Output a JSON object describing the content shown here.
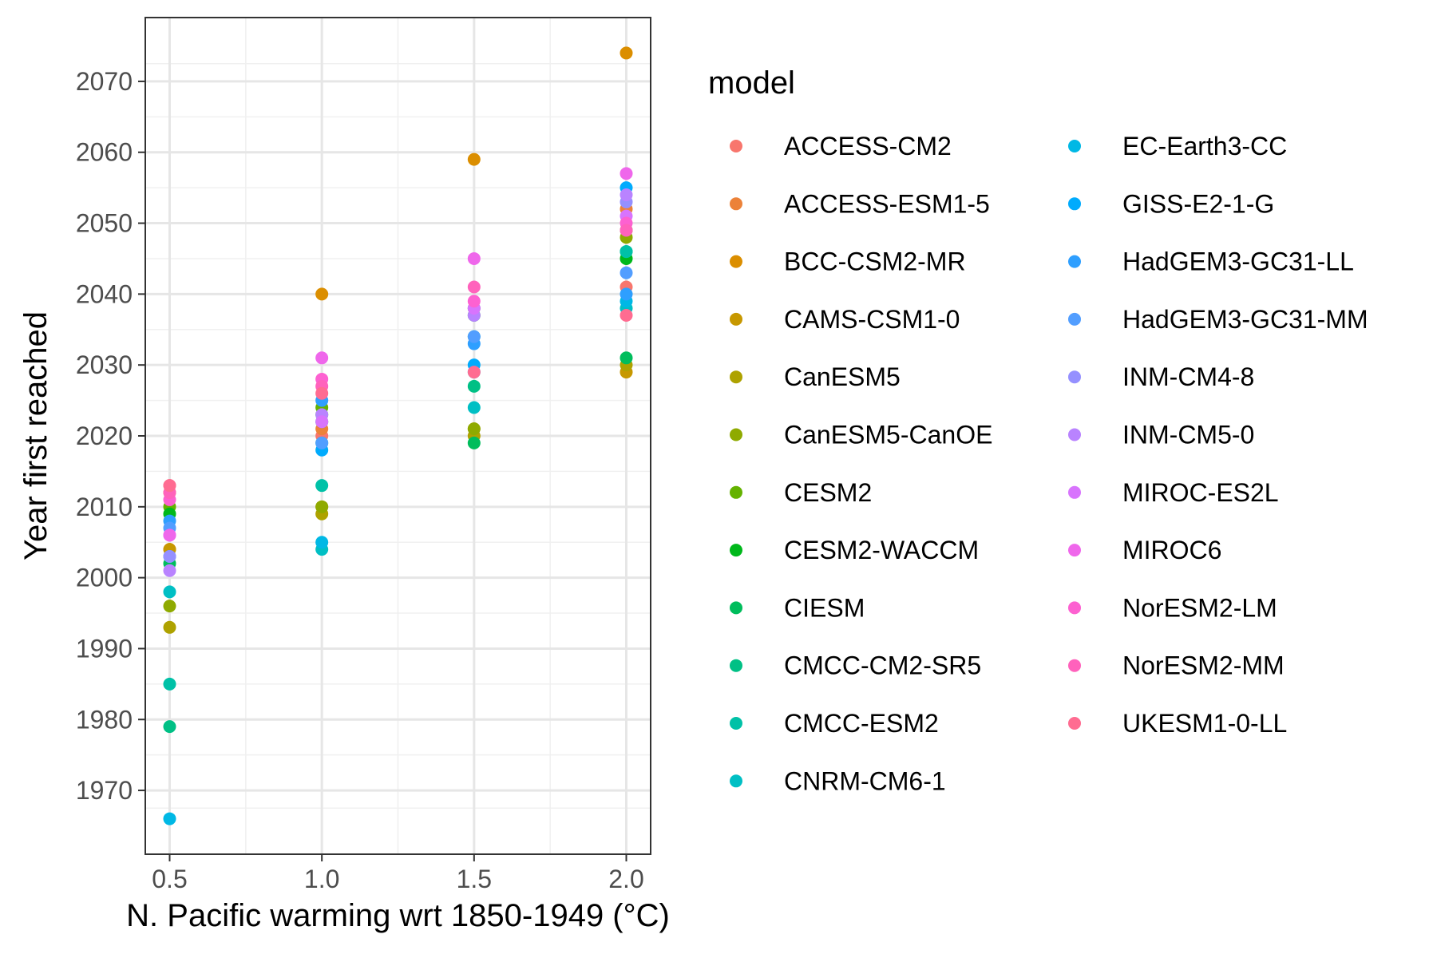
{
  "chart_data": {
    "type": "scatter",
    "xlabel": "N. Pacific warming wrt 1850-1949 (°C)",
    "ylabel": "Year first reached",
    "xlim": [
      0.42,
      2.08
    ],
    "ylim": [
      1961,
      2079
    ],
    "x_ticks": [
      0.5,
      1.0,
      1.5,
      2.0
    ],
    "x_tick_labels": [
      "0.5",
      "1.0",
      "1.5",
      "2.0"
    ],
    "y_ticks": [
      1970,
      1980,
      1990,
      2000,
      2010,
      2020,
      2030,
      2040,
      2050,
      2060,
      2070
    ],
    "y_tick_labels": [
      "1970",
      "1980",
      "1990",
      "2000",
      "2010",
      "2020",
      "2030",
      "2040",
      "2050",
      "2060",
      "2070"
    ],
    "grid": true,
    "legend": {
      "title": "model",
      "placement": "right"
    },
    "series": [
      {
        "name": "ACCESS-CM2",
        "color": "#F8766D",
        "points": [
          [
            0.5,
            2013
          ],
          [
            1.0,
            2020
          ],
          [
            2.0,
            2041
          ]
        ]
      },
      {
        "name": "ACCESS-ESM1-5",
        "color": "#EC8239",
        "points": [
          [
            0.5,
            2004
          ],
          [
            1.0,
            2021
          ],
          [
            2.0,
            2052
          ]
        ]
      },
      {
        "name": "BCC-CSM2-MR",
        "color": "#DB8E00",
        "points": [
          [
            0.5,
            2012
          ],
          [
            1.0,
            2040
          ],
          [
            1.5,
            2059
          ],
          [
            2.0,
            2074
          ]
        ]
      },
      {
        "name": "CAMS-CSM1-0",
        "color": "#C79800",
        "points": [
          [
            0.5,
            2004
          ],
          [
            1.0,
            2010
          ],
          [
            1.5,
            2021
          ],
          [
            2.0,
            2029
          ]
        ]
      },
      {
        "name": "CanESM5",
        "color": "#AEA200",
        "points": [
          [
            0.5,
            1993
          ],
          [
            1.0,
            2009
          ],
          [
            1.5,
            2020
          ],
          [
            2.0,
            2030
          ]
        ]
      },
      {
        "name": "CanESM5-CanOE",
        "color": "#8FAA00",
        "points": [
          [
            0.5,
            1996
          ],
          [
            1.0,
            2010
          ],
          [
            1.5,
            2021
          ],
          [
            2.0,
            2048
          ]
        ]
      },
      {
        "name": "CESM2",
        "color": "#64B200",
        "points": [
          [
            0.5,
            2010
          ],
          [
            1.0,
            2024
          ],
          [
            1.5,
            2038
          ],
          [
            2.0,
            2049
          ]
        ]
      },
      {
        "name": "CESM2-WACCM",
        "color": "#00B81B",
        "points": [
          [
            0.5,
            2009
          ],
          [
            1.0,
            2023
          ],
          [
            1.5,
            2037
          ],
          [
            2.0,
            2045
          ]
        ]
      },
      {
        "name": "CIESM",
        "color": "#00BD5C",
        "points": [
          [
            0.5,
            2002
          ],
          [
            1.0,
            2022
          ],
          [
            1.5,
            2019
          ],
          [
            2.0,
            2031
          ]
        ]
      },
      {
        "name": "CMCC-CM2-SR5",
        "color": "#00C085",
        "points": [
          [
            0.5,
            1979
          ],
          [
            1.0,
            2019
          ],
          [
            1.5,
            2027
          ],
          [
            2.0,
            2046
          ]
        ]
      },
      {
        "name": "CMCC-ESM2",
        "color": "#00C1A7",
        "points": [
          [
            0.5,
            1985
          ],
          [
            1.0,
            2013
          ],
          [
            1.5,
            2034
          ],
          [
            2.0,
            2046
          ]
        ]
      },
      {
        "name": "CNRM-CM6-1",
        "color": "#00BFC4",
        "points": [
          [
            0.5,
            1998
          ],
          [
            1.0,
            2004
          ],
          [
            1.5,
            2024
          ],
          [
            2.0,
            2038
          ]
        ]
      },
      {
        "name": "EC-Earth3-CC",
        "color": "#00B8E5",
        "points": [
          [
            0.5,
            1966
          ],
          [
            1.0,
            2005
          ],
          [
            1.5,
            2029
          ],
          [
            2.0,
            2039
          ]
        ]
      },
      {
        "name": "GISS-E2-1-G",
        "color": "#00ABFD",
        "points": [
          [
            0.5,
            2003
          ],
          [
            1.0,
            2018
          ],
          [
            1.5,
            2030
          ],
          [
            2.0,
            2055
          ]
        ]
      },
      {
        "name": "HadGEM3-GC31-LL",
        "color": "#2E9FFF",
        "points": [
          [
            0.5,
            2008
          ],
          [
            1.0,
            2025
          ],
          [
            1.5,
            2033
          ],
          [
            2.0,
            2040
          ]
        ]
      },
      {
        "name": "HadGEM3-GC31-MM",
        "color": "#529EFF",
        "points": [
          [
            0.5,
            2007
          ],
          [
            1.0,
            2019
          ],
          [
            1.5,
            2034
          ],
          [
            2.0,
            2043
          ]
        ]
      },
      {
        "name": "INM-CM4-8",
        "color": "#9590FF",
        "points": [
          [
            0.5,
            2003
          ],
          [
            1.0,
            2022
          ],
          [
            1.5,
            2038
          ],
          [
            2.0,
            2053
          ]
        ]
      },
      {
        "name": "INM-CM5-0",
        "color": "#B983FF",
        "points": [
          [
            0.5,
            2001
          ],
          [
            1.0,
            2023
          ],
          [
            1.5,
            2037
          ],
          [
            2.0,
            2054
          ]
        ]
      },
      {
        "name": "MIROC-ES2L",
        "color": "#D874FD",
        "points": [
          [
            0.5,
            2006
          ],
          [
            1.0,
            2022
          ],
          [
            1.5,
            2038
          ],
          [
            2.0,
            2051
          ]
        ]
      },
      {
        "name": "MIROC6",
        "color": "#EF67EB",
        "points": [
          [
            0.5,
            2006
          ],
          [
            1.0,
            2031
          ],
          [
            1.5,
            2045
          ],
          [
            2.0,
            2057
          ]
        ]
      },
      {
        "name": "NorESM2-LM",
        "color": "#FD61D1",
        "points": [
          [
            0.5,
            2011
          ],
          [
            1.0,
            2028
          ],
          [
            1.5,
            2039
          ],
          [
            2.0,
            2050
          ]
        ]
      },
      {
        "name": "NorESM2-MM",
        "color": "#FF62BC",
        "points": [
          [
            0.5,
            2012
          ],
          [
            1.0,
            2027
          ],
          [
            1.5,
            2041
          ],
          [
            2.0,
            2049
          ]
        ]
      },
      {
        "name": "UKESM1-0-LL",
        "color": "#FF6C91",
        "points": [
          [
            0.5,
            2013
          ],
          [
            1.0,
            2026
          ],
          [
            1.5,
            2029
          ],
          [
            2.0,
            2037
          ]
        ]
      }
    ]
  }
}
